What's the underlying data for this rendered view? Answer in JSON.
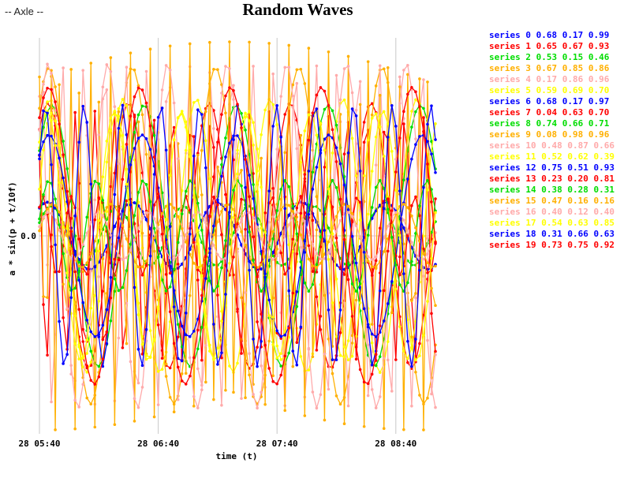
{
  "app": {
    "label": "-- Axle --"
  },
  "chart_data": {
    "type": "line",
    "title": "Random Waves",
    "xlabel": "time (t)",
    "ylabel": "a * sin(p + t/10f)",
    "x_unit": "minutes since 28 05:40",
    "xlim": [
      0,
      200
    ],
    "ylim": [
      -1.0,
      1.0
    ],
    "x_ticks": [
      {
        "value": 0,
        "label": "28 05:40"
      },
      {
        "value": 60,
        "label": "28 06:40"
      },
      {
        "value": 120,
        "label": "28 07:40"
      },
      {
        "value": 180,
        "label": "28 08:40"
      }
    ],
    "y_ticks": [
      {
        "value": 0,
        "label": "0.0"
      }
    ],
    "grid": true,
    "legend_position": "right",
    "series": [
      {
        "name": "series 0",
        "params": "0.68 0.17 0.99",
        "color": "#0000ff",
        "a": 0.17,
        "p": 0.99,
        "f": 0.68
      },
      {
        "name": "series 1",
        "params": "0.65 0.67 0.93",
        "color": "#ff0000",
        "a": 0.67,
        "p": 0.93,
        "f": 0.65
      },
      {
        "name": "series 2",
        "params": "0.53 0.15 0.46",
        "color": "#00dd00",
        "a": 0.15,
        "p": 0.46,
        "f": 0.53
      },
      {
        "name": "series 3",
        "params": "0.67 0.85 0.86",
        "color": "#ffb000",
        "a": 0.85,
        "p": 0.86,
        "f": 0.67
      },
      {
        "name": "series 4",
        "params": "0.17 0.86 0.96",
        "color": "#ffaaaa",
        "a": 0.86,
        "p": 0.96,
        "f": 0.17
      },
      {
        "name": "series 5",
        "params": "0.59 0.69 0.70",
        "color": "#ffff00",
        "a": 0.69,
        "p": 0.7,
        "f": 0.59
      },
      {
        "name": "series 6",
        "params": "0.68 0.17 0.97",
        "color": "#0000ff",
        "a": 0.17,
        "p": 0.97,
        "f": 0.68
      },
      {
        "name": "series 7",
        "params": "0.04 0.63 0.70",
        "color": "#ff0000",
        "a": 0.63,
        "p": 0.7,
        "f": 0.04
      },
      {
        "name": "series 8",
        "params": "0.74 0.66 0.71",
        "color": "#00dd00",
        "a": 0.66,
        "p": 0.71,
        "f": 0.74
      },
      {
        "name": "series 9",
        "params": "0.08 0.98 0.96",
        "color": "#ffb000",
        "a": 0.98,
        "p": 0.96,
        "f": 0.08
      },
      {
        "name": "series 10",
        "params": "0.48 0.87 0.66",
        "color": "#ffaaaa",
        "a": 0.87,
        "p": 0.66,
        "f": 0.48
      },
      {
        "name": "series 11",
        "params": "0.52 0.62 0.39",
        "color": "#ffff00",
        "a": 0.62,
        "p": 0.39,
        "f": 0.52
      },
      {
        "name": "series 12",
        "params": "0.75 0.51 0.93",
        "color": "#0000ff",
        "a": 0.51,
        "p": 0.93,
        "f": 0.75
      },
      {
        "name": "series 13",
        "params": "0.23 0.20 0.81",
        "color": "#ff0000",
        "a": 0.2,
        "p": 0.81,
        "f": 0.23
      },
      {
        "name": "series 14",
        "params": "0.38 0.28 0.31",
        "color": "#00dd00",
        "a": 0.28,
        "p": 0.31,
        "f": 0.38
      },
      {
        "name": "series 15",
        "params": "0.47 0.16 0.16",
        "color": "#ffb000",
        "a": 0.16,
        "p": 0.16,
        "f": 0.47
      },
      {
        "name": "series 16",
        "params": "0.40 0.12 0.40",
        "color": "#ffaaaa",
        "a": 0.12,
        "p": 0.4,
        "f": 0.4
      },
      {
        "name": "series 17",
        "params": "0.54 0.63 0.85",
        "color": "#ffff00",
        "a": 0.63,
        "p": 0.85,
        "f": 0.54
      },
      {
        "name": "series 18",
        "params": "0.31 0.66 0.63",
        "color": "#0000ff",
        "a": 0.66,
        "p": 0.63,
        "f": 0.31
      },
      {
        "name": "series 19",
        "params": "0.73 0.75 0.92",
        "color": "#ff0000",
        "a": 0.75,
        "p": 0.92,
        "f": 0.73
      }
    ]
  }
}
